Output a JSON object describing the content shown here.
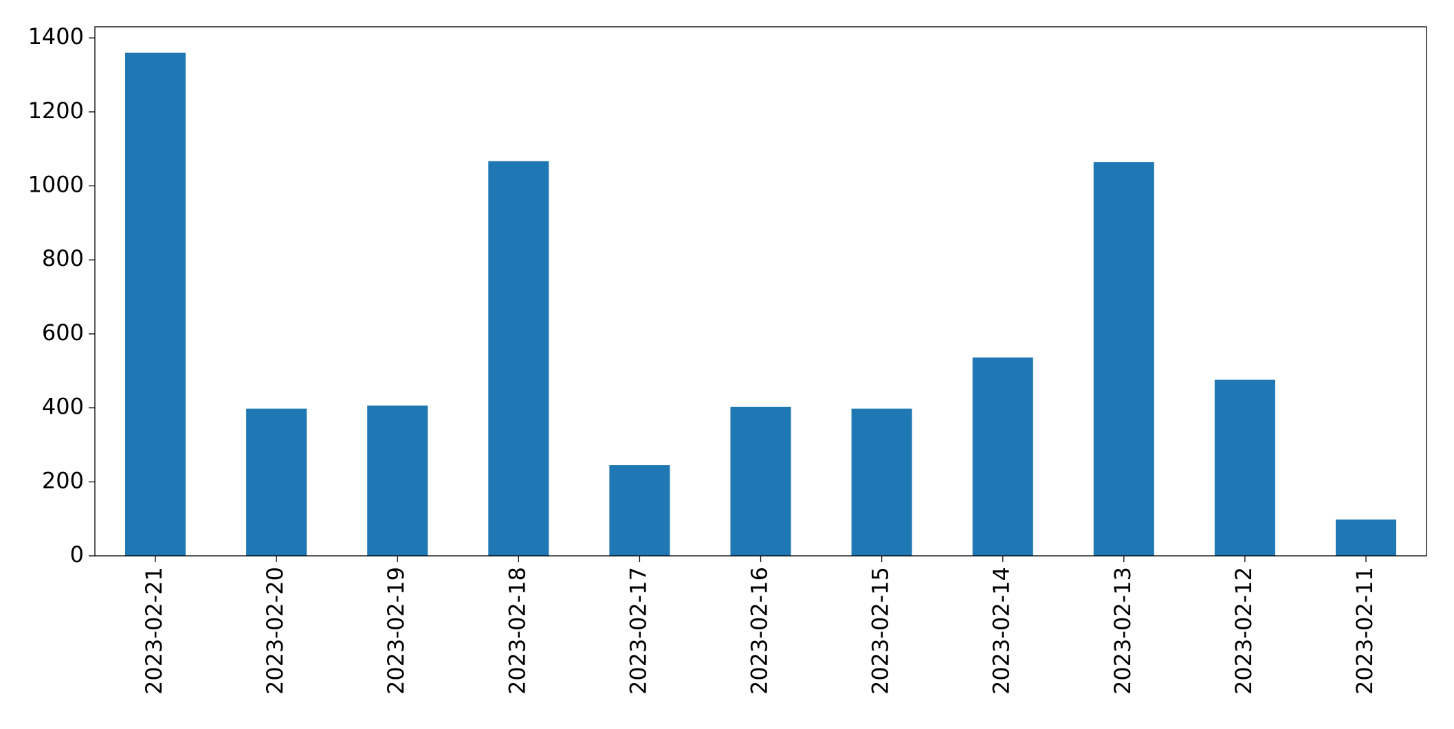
{
  "chart_data": {
    "type": "bar",
    "categories": [
      "2023-02-21",
      "2023-02-20",
      "2023-02-19",
      "2023-02-18",
      "2023-02-17",
      "2023-02-16",
      "2023-02-15",
      "2023-02-14",
      "2023-02-13",
      "2023-02-12",
      "2023-02-11"
    ],
    "values": [
      1360,
      398,
      406,
      1067,
      245,
      403,
      398,
      536,
      1064,
      476,
      98
    ],
    "color": "#1f77b4",
    "ylim": [
      0,
      1430
    ],
    "yticks": [
      0,
      200,
      400,
      600,
      800,
      1000,
      1200,
      1400
    ],
    "grid": false
  }
}
